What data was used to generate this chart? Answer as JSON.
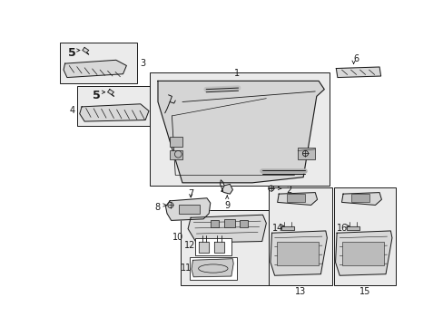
{
  "bg_color": "#ffffff",
  "line_color": "#1a1a1a",
  "part_fill": "#d8d8d8",
  "box_fill": "#ebebeb",
  "white": "#ffffff",
  "figsize": [
    4.89,
    3.6
  ],
  "dpi": 100
}
